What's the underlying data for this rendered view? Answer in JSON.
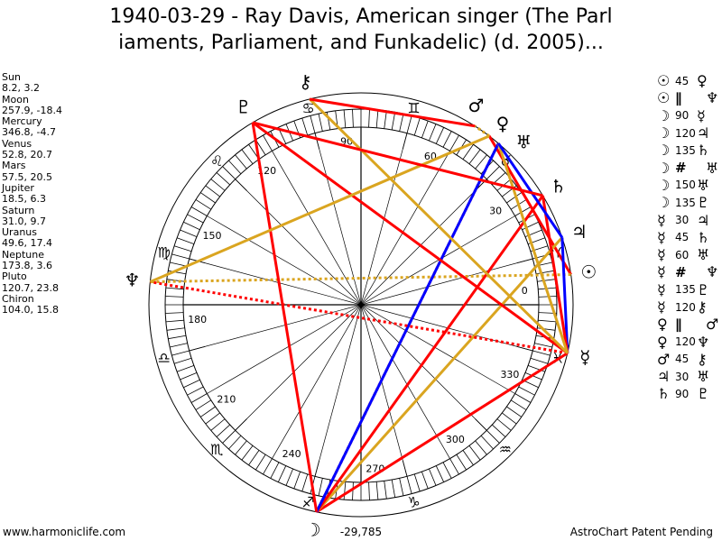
{
  "title": {
    "line1": "1940-03-29 - Ray Davis, American singer (The Parl",
    "line2": "iaments, Parliament, and Funkadelic) (d. 2005)..."
  },
  "planets": [
    {
      "name": "Sun",
      "glyph": "☉",
      "coords": "8.2, 3.2",
      "lon": 8.2
    },
    {
      "name": "Moon",
      "glyph": "☽",
      "coords": "257.9, -18.4",
      "lon": 257.9
    },
    {
      "name": "Mercury",
      "glyph": "☿",
      "coords": "346.8, -4.7",
      "lon": 346.8
    },
    {
      "name": "Venus",
      "glyph": "♀",
      "coords": "52.8, 20.7",
      "lon": 52.8
    },
    {
      "name": "Mars",
      "glyph": "♂",
      "coords": "57.5, 20.5",
      "lon": 57.5
    },
    {
      "name": "Jupiter",
      "glyph": "♃",
      "coords": "18.5, 6.3",
      "lon": 18.5
    },
    {
      "name": "Saturn",
      "glyph": "♄",
      "coords": "31.0, 9.7",
      "lon": 31.0
    },
    {
      "name": "Uranus",
      "glyph": "♅",
      "coords": "49.6, 17.4",
      "lon": 49.6
    },
    {
      "name": "Neptune",
      "glyph": "♆",
      "coords": "173.8, 3.6",
      "lon": 173.8
    },
    {
      "name": "Pluto",
      "glyph": "♇",
      "coords": "120.7, 23.8",
      "lon": 120.7
    },
    {
      "name": "Chiron",
      "glyph": "⚷",
      "coords": "104.0, 15.8",
      "lon": 104.0
    }
  ],
  "aspects": [
    {
      "p1": 0,
      "p2": 3,
      "label": "45"
    },
    {
      "p1": 0,
      "p2": 8,
      "label": "||"
    },
    {
      "p1": 1,
      "p2": 2,
      "label": "90"
    },
    {
      "p1": 1,
      "p2": 5,
      "label": "120"
    },
    {
      "p1": 1,
      "p2": 6,
      "label": "135"
    },
    {
      "p1": 1,
      "p2": 7,
      "label": "#"
    },
    {
      "p1": 1,
      "p2": 7,
      "label": "150"
    },
    {
      "p1": 1,
      "p2": 9,
      "label": "135"
    },
    {
      "p1": 2,
      "p2": 5,
      "label": "30"
    },
    {
      "p1": 2,
      "p2": 6,
      "label": "45"
    },
    {
      "p1": 2,
      "p2": 7,
      "label": "60"
    },
    {
      "p1": 2,
      "p2": 8,
      "label": "#"
    },
    {
      "p1": 2,
      "p2": 9,
      "label": "135"
    },
    {
      "p1": 2,
      "p2": 10,
      "label": "120"
    },
    {
      "p1": 3,
      "p2": 4,
      "label": "||"
    },
    {
      "p1": 3,
      "p2": 8,
      "label": "120"
    },
    {
      "p1": 4,
      "p2": 10,
      "label": "45"
    },
    {
      "p1": 5,
      "p2": 7,
      "label": "30"
    },
    {
      "p1": 6,
      "p2": 9,
      "label": "90"
    }
  ],
  "signs": [
    "♈",
    "♉",
    "♊",
    "♋",
    "♌",
    "♍",
    "♎",
    "♏",
    "♐",
    "♑",
    "♒",
    "♓"
  ],
  "degree_labels": [
    "0",
    "30",
    "60",
    "90",
    "120",
    "150",
    "180",
    "210",
    "240",
    "270",
    "300",
    "330"
  ],
  "colors": {
    "hard": "#ff0000",
    "soft": "#daa520",
    "minor": "#0000ff"
  },
  "footer": {
    "left": "www.harmoniclife.com",
    "center": "-29,785",
    "right": "AstroChart Patent Pending"
  }
}
